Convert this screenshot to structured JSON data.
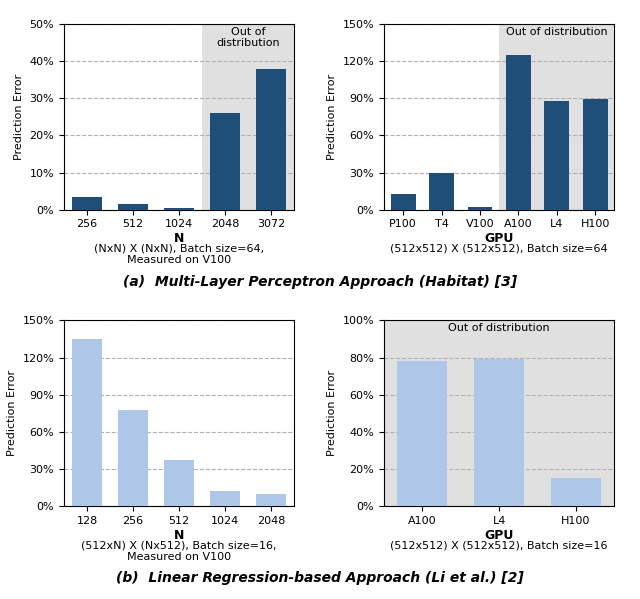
{
  "chart_data": [
    {
      "type": "bar",
      "subtitle": "(NxN) X (NxN), Batch size=64,\nMeasured on V100",
      "xlabel": "N",
      "ylabel": "Prediction Error",
      "categories": [
        "256",
        "512",
        "1024",
        "2048",
        "3072"
      ],
      "values": [
        3.5,
        1.5,
        0.5,
        26.0,
        38.0
      ],
      "color": "#1f4e79",
      "ylim": [
        0,
        50
      ],
      "yticks": [
        {
          "value": 0,
          "label": "0%"
        },
        {
          "value": 10,
          "label": "10%"
        },
        {
          "value": 20,
          "label": "20%"
        },
        {
          "value": 30,
          "label": "30%"
        },
        {
          "value": 40,
          "label": "40%"
        },
        {
          "value": 50,
          "label": "50%"
        }
      ],
      "grid": true,
      "annotations": [
        {
          "text": "Out of\ndistribution",
          "categories": [
            "2048",
            "3072"
          ],
          "color": "#e0e0e0"
        }
      ]
    },
    {
      "type": "bar",
      "subtitle": "(512x512) X (512x512), Batch size=64",
      "xlabel": "GPU",
      "ylabel": "Prediction Error",
      "categories": [
        "P100",
        "T4",
        "V100",
        "A100",
        "L4",
        "H100"
      ],
      "values": [
        13.0,
        30.0,
        2.0,
        125.0,
        88.0,
        89.0
      ],
      "color": "#1f4e79",
      "ylim": [
        0,
        150
      ],
      "yticks": [
        {
          "value": 0,
          "label": "0%"
        },
        {
          "value": 30,
          "label": "30%"
        },
        {
          "value": 60,
          "label": "60%"
        },
        {
          "value": 90,
          "label": "90%"
        },
        {
          "value": 120,
          "label": "120%"
        },
        {
          "value": 150,
          "label": "150%"
        }
      ],
      "grid": true,
      "annotations": [
        {
          "text": "Out of distribution",
          "categories": [
            "A100",
            "L4",
            "H100"
          ],
          "color": "#e0e0e0"
        }
      ]
    },
    {
      "type": "bar",
      "subtitle": "(512xN) X (Nx512), Batch size=16,\nMeasured on V100",
      "xlabel": "N",
      "ylabel": "Prediction Error",
      "categories": [
        "128",
        "256",
        "512",
        "1024",
        "2048"
      ],
      "values": [
        135.0,
        78.0,
        37.0,
        12.0,
        10.0
      ],
      "color": "#aec6e8",
      "ylim": [
        0,
        150
      ],
      "yticks": [
        {
          "value": 0,
          "label": "0%"
        },
        {
          "value": 30,
          "label": "30%"
        },
        {
          "value": 60,
          "label": "60%"
        },
        {
          "value": 90,
          "label": "90%"
        },
        {
          "value": 120,
          "label": "120%"
        },
        {
          "value": 150,
          "label": "150%"
        }
      ],
      "grid": true
    },
    {
      "type": "bar",
      "subtitle": "(512x512) X (512x512), Batch size=16",
      "xlabel": "GPU",
      "ylabel": "Prediction Error",
      "categories": [
        "A100",
        "L4",
        "H100"
      ],
      "values": [
        78.0,
        79.0,
        15.0
      ],
      "color": "#aec6e8",
      "ylim": [
        0,
        100
      ],
      "yticks": [
        {
          "value": 0,
          "label": "0%"
        },
        {
          "value": 20,
          "label": "20%"
        },
        {
          "value": 40,
          "label": "40%"
        },
        {
          "value": 60,
          "label": "60%"
        },
        {
          "value": 80,
          "label": "80%"
        },
        {
          "value": 100,
          "label": "100%"
        }
      ],
      "grid": true,
      "annotations": [
        {
          "text": "Out of distribution",
          "categories": [
            "A100",
            "L4",
            "H100"
          ],
          "color": "#e0e0e0"
        }
      ]
    }
  ],
  "annotations": [
    "(a)  Multi-Layer Perceptron Approach (Habitat) [3]",
    "(b)  Linear Regression-based Approach (Li et al.) [2]"
  ]
}
